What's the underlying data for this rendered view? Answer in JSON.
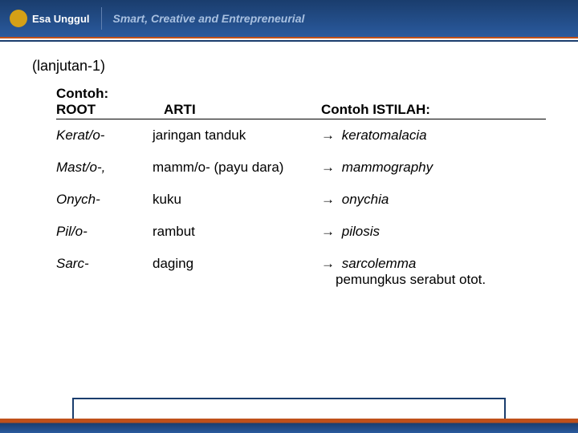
{
  "header": {
    "logo_text": "Esa Unggul",
    "tagline": "Smart, Creative and Entrepreneurial"
  },
  "slide": {
    "title": "(lanjutan-1)",
    "contoh_label": "Contoh:",
    "columns": {
      "root": "ROOT",
      "arti": "ARTI",
      "istilah": "Contoh ISTILAH:"
    },
    "rows": [
      {
        "root": "Kerat/o-",
        "arti": "jaringan tanduk",
        "istilah": "keratomalacia",
        "sub": ""
      },
      {
        "root": "Mast/o-,",
        "arti": "mamm/o- (payu dara)",
        "istilah": "mammography",
        "sub": ""
      },
      {
        "root": "Onych-",
        "arti": "kuku",
        "istilah": "onychia",
        "sub": ""
      },
      {
        "root": "Pil/o-",
        "arti": "rambut",
        "istilah": "pilosis",
        "sub": ""
      },
      {
        "root": "Sarc-",
        "arti": "daging",
        "istilah": "sarcolemma",
        "sub": "pemungkus serabut otot."
      }
    ],
    "arrow": "→"
  },
  "colors": {
    "header_grad_top": "#1a3d6d",
    "header_grad_bottom": "#2a5a9e",
    "accent_orange": "#c0501a",
    "text": "#000000",
    "background": "#ffffff"
  }
}
